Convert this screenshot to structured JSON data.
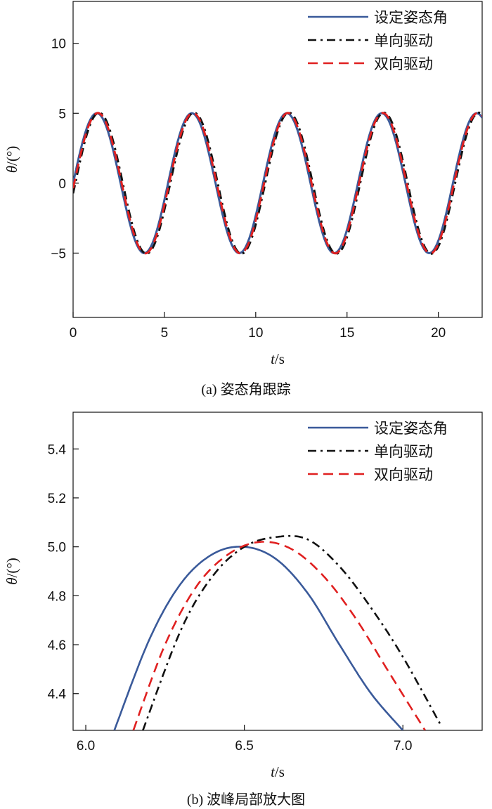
{
  "chart_data": [
    {
      "type": "line",
      "caption": "(a) 姿态角跟踪",
      "xlabel_var": "t",
      "xlabel_unit": "/s",
      "ylabel_var": "θ",
      "ylabel_unit": "/(°)",
      "xlim": [
        0,
        22.4
      ],
      "ylim": [
        -9.6,
        13
      ],
      "xticks": [
        0,
        5,
        10,
        15,
        20
      ],
      "yticks": [
        10,
        5,
        0,
        -5
      ],
      "ytick_labels": [
        "10",
        "5",
        "0",
        "−5"
      ],
      "legend_position": "top-right",
      "series": [
        {
          "name": "设定姿态角",
          "color": "#3a5a9a",
          "dash": "solid",
          "amplitude": 5,
          "period": 5.2,
          "phase_shift": 0
        },
        {
          "name": "单向驱动",
          "color": "#111111",
          "dash": "dashdot",
          "amplitude": 5.04,
          "period": 5.2,
          "phase_shift": 0.12
        },
        {
          "name": "双向驱动",
          "color": "#e02020",
          "dash": "dashed",
          "amplitude": 5.02,
          "period": 5.2,
          "phase_shift": 0.06
        }
      ]
    },
    {
      "type": "line",
      "caption": "(b) 波峰局部放大图",
      "xlabel_var": "t",
      "xlabel_unit": "/s",
      "ylabel_var": "θ",
      "ylabel_unit": "/(°)",
      "xlim": [
        5.96,
        7.25
      ],
      "ylim": [
        4.25,
        5.55
      ],
      "xticks": [
        6.0,
        6.5,
        7.0
      ],
      "xtick_labels": [
        "6.0",
        "6.5",
        "7.0"
      ],
      "yticks": [
        4.4,
        4.6,
        4.8,
        5.0,
        5.2,
        5.4
      ],
      "ytick_labels": [
        "4.4",
        "4.6",
        "4.8",
        "5.0",
        "5.2",
        "5.4"
      ],
      "legend_position": "top-right",
      "series": [
        {
          "name": "设定姿态角",
          "color": "#3a5a9a",
          "dash": "solid",
          "points": [
            [
              6.09,
              4.25
            ],
            [
              6.2,
              4.62
            ],
            [
              6.3,
              4.85
            ],
            [
              6.4,
              4.97
            ],
            [
              6.5,
              5.0
            ],
            [
              6.6,
              4.95
            ],
            [
              6.7,
              4.81
            ],
            [
              6.8,
              4.6
            ],
            [
              6.9,
              4.4
            ],
            [
              7.0,
              4.25
            ]
          ]
        },
        {
          "name": "单向驱动",
          "color": "#111111",
          "dash": "dashdot",
          "points": [
            [
              6.18,
              4.25
            ],
            [
              6.3,
              4.66
            ],
            [
              6.4,
              4.88
            ],
            [
              6.5,
              5.0
            ],
            [
              6.6,
              5.04
            ],
            [
              6.7,
              5.03
            ],
            [
              6.8,
              4.92
            ],
            [
              6.9,
              4.75
            ],
            [
              7.0,
              4.55
            ],
            [
              7.12,
              4.27
            ]
          ]
        },
        {
          "name": "双向驱动",
          "color": "#e02020",
          "dash": "dashed",
          "points": [
            [
              6.15,
              4.25
            ],
            [
              6.25,
              4.6
            ],
            [
              6.35,
              4.84
            ],
            [
              6.45,
              4.97
            ],
            [
              6.55,
              5.02
            ],
            [
              6.65,
              4.99
            ],
            [
              6.75,
              4.88
            ],
            [
              6.85,
              4.71
            ],
            [
              6.95,
              4.5
            ],
            [
              7.07,
              4.25
            ]
          ]
        }
      ]
    }
  ]
}
